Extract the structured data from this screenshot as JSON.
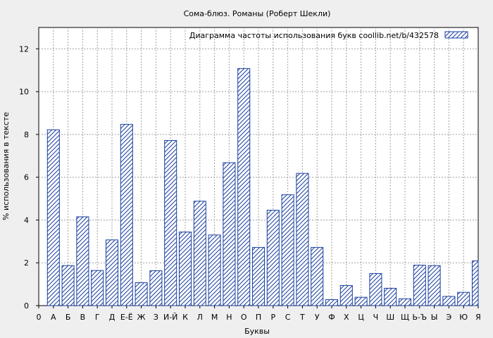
{
  "chart_data": {
    "type": "bar",
    "title": "Сома-блюз. Романы (Роберт Шекли)",
    "xlabel": "Буквы",
    "ylabel": "% использования в тексте",
    "legend_label": "Диаграмма частоты использования букв  coollib.net/b/432578",
    "legend_position": "top-right",
    "grid": true,
    "ylim": [
      0,
      13
    ],
    "yticks": [
      0,
      2,
      4,
      6,
      8,
      10,
      12
    ],
    "x_tick_labels": [
      "0",
      "А",
      "Б",
      "В",
      "Г",
      "Д",
      "Е-Ё",
      "Ж",
      "З",
      "И-Й",
      "К",
      "Л",
      "М",
      "Н",
      "О",
      "П",
      "Р",
      "С",
      "Т",
      "У",
      "Ф",
      "Х",
      "Ц",
      "Ч",
      "Ш",
      "Щ",
      "Ь-Ъ",
      "Ы",
      "Э",
      "Ю",
      "Я"
    ],
    "categories": [
      "А",
      "Б",
      "В",
      "Г",
      "Д",
      "Е-Ё",
      "Ж",
      "З",
      "И-Й",
      "К",
      "Л",
      "М",
      "Н",
      "О",
      "П",
      "Р",
      "С",
      "Т",
      "У",
      "Ф",
      "Х",
      "Ц",
      "Ч",
      "Ш",
      "Щ",
      "Ь-Ъ",
      "Ы",
      "Э",
      "Ю",
      "Я"
    ],
    "values": [
      8.22,
      1.87,
      4.15,
      1.64,
      3.07,
      8.47,
      1.07,
      1.63,
      7.72,
      3.44,
      4.88,
      3.3,
      6.68,
      11.08,
      2.72,
      4.46,
      5.18,
      6.18,
      2.72,
      0.28,
      0.94,
      0.39,
      1.5,
      0.81,
      0.32,
      1.89,
      1.87,
      0.43,
      0.62,
      2.09
    ],
    "bar_color": "#1a3fa0",
    "grid_color": "#a0a0a0"
  }
}
